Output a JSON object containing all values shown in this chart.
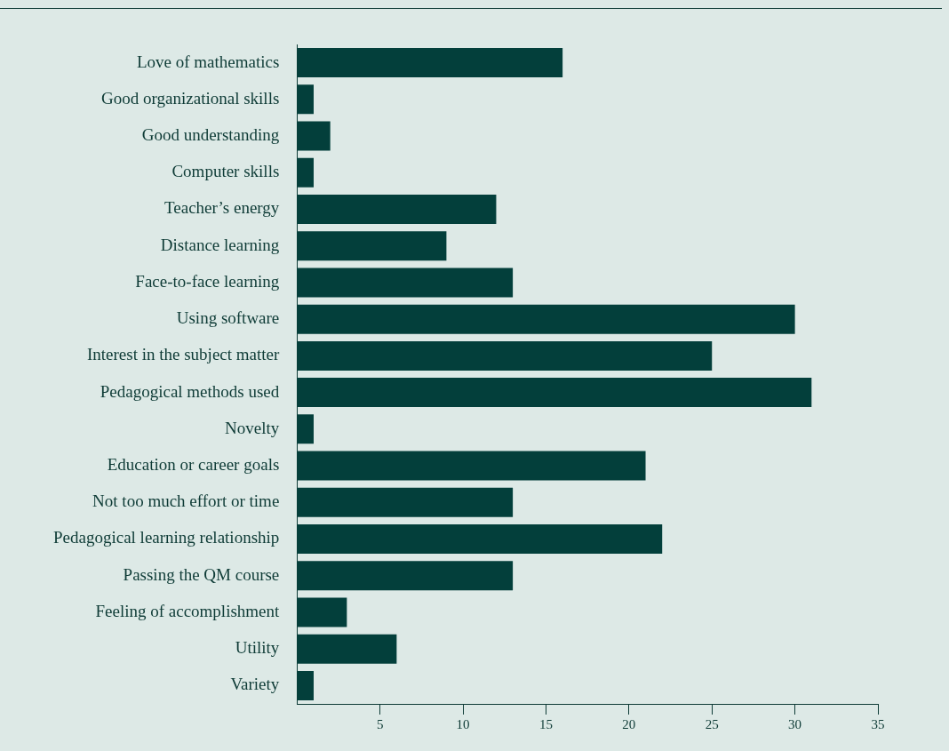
{
  "chart_data": {
    "type": "bar",
    "orientation": "horizontal",
    "categories": [
      "Love of mathematics",
      "Good organizational skills",
      "Good understanding",
      "Computer skills",
      "Teacher’s energy",
      "Distance learning",
      "Face-to-face learning",
      "Using software",
      "Interest in the subject matter",
      "Pedagogical methods used",
      "Novelty",
      "Education or career goals",
      "Not too much effort or time",
      "Pedagogical learning relationship",
      "Passing the QM course",
      "Feeling of accomplishment",
      "Utility",
      "Variety"
    ],
    "values": [
      16,
      1,
      2,
      1,
      12,
      9,
      13,
      30,
      25,
      31,
      1,
      21,
      13,
      22,
      13,
      3,
      6,
      1
    ],
    "color": "#033f3b",
    "xlim": [
      0,
      35
    ],
    "xticks": [
      5,
      10,
      15,
      20,
      25,
      30,
      35
    ],
    "grid": false,
    "legend": false
  }
}
